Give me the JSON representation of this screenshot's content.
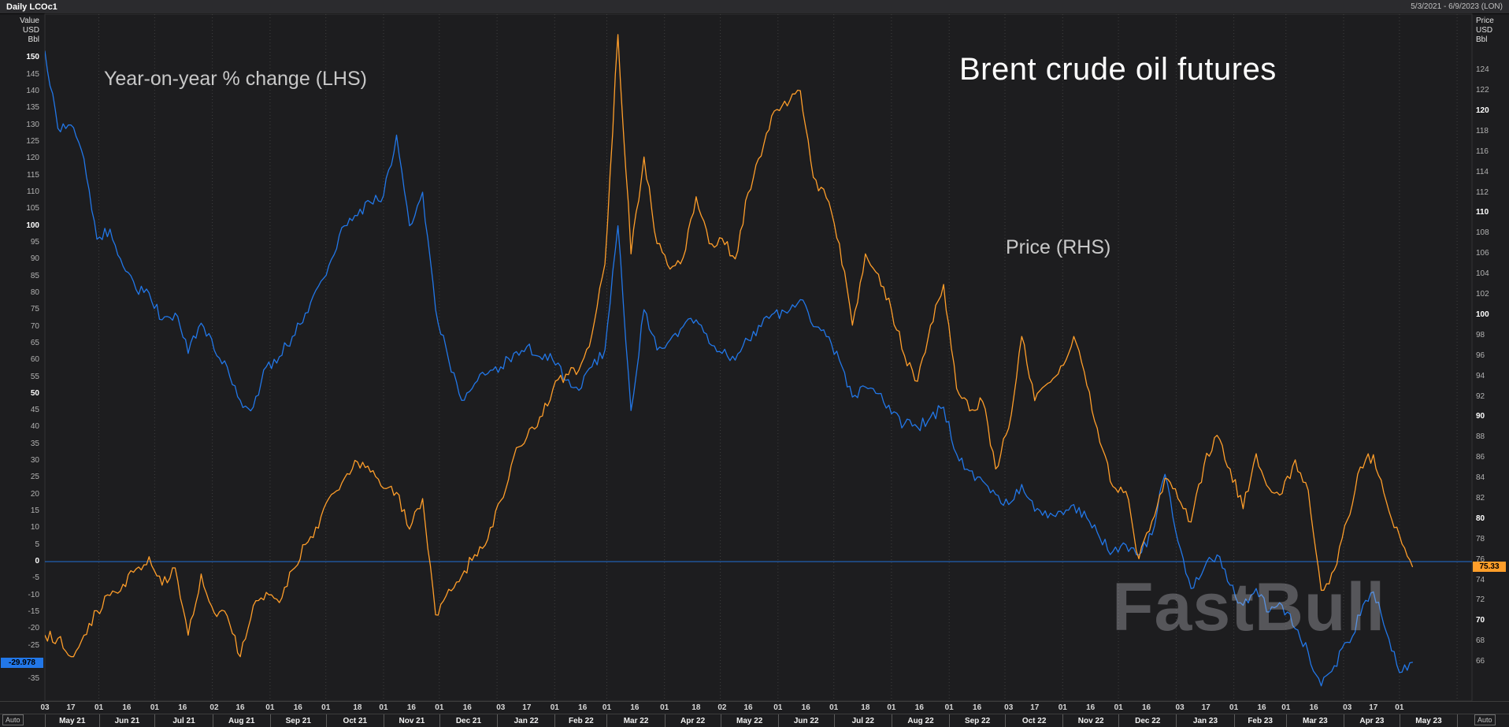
{
  "header": {
    "title": "Daily LCOc1",
    "date_range": "5/3/2021 - 6/9/2023 (LON)"
  },
  "watermark": "FastBull",
  "controls": {
    "auto_label": "Auto"
  },
  "colors": {
    "background": "#1d1d1f",
    "blue": "#2277e8",
    "orange": "#ff9e2a",
    "grid": "#3f3f3f",
    "plot_border": "#343434"
  },
  "chart_data": {
    "type": "line",
    "title": "Brent crude oil futures",
    "x_axis": {
      "start": "2021-05-03",
      "end": "2023-06-09",
      "months": [
        {
          "label": "May 21",
          "days": [
            3,
            17
          ]
        },
        {
          "label": "Jun 21",
          "days": [
            1,
            16
          ]
        },
        {
          "label": "Jul 21",
          "days": [
            1,
            16
          ]
        },
        {
          "label": "Aug 21",
          "days": [
            2,
            16
          ]
        },
        {
          "label": "Sep 21",
          "days": [
            1,
            16
          ]
        },
        {
          "label": "Oct 21",
          "days": [
            1,
            18
          ]
        },
        {
          "label": "Nov 21",
          "days": [
            1,
            16
          ]
        },
        {
          "label": "Dec 21",
          "days": [
            1,
            16
          ]
        },
        {
          "label": "Jan 22",
          "days": [
            3,
            17
          ]
        },
        {
          "label": "Feb 22",
          "days": [
            1,
            16
          ]
        },
        {
          "label": "Mar 22",
          "days": [
            1,
            16
          ]
        },
        {
          "label": "Apr 22",
          "days": [
            1,
            18
          ]
        },
        {
          "label": "May 22",
          "days": [
            2,
            16
          ]
        },
        {
          "label": "Jun 22",
          "days": [
            1,
            16
          ]
        },
        {
          "label": "Jul 22",
          "days": [
            1,
            18
          ]
        },
        {
          "label": "Aug 22",
          "days": [
            1,
            16
          ]
        },
        {
          "label": "Sep 22",
          "days": [
            1,
            16
          ]
        },
        {
          "label": "Oct 22",
          "days": [
            3,
            17
          ]
        },
        {
          "label": "Nov 22",
          "days": [
            1,
            16
          ]
        },
        {
          "label": "Dec 22",
          "days": [
            1,
            16
          ]
        },
        {
          "label": "Jan 23",
          "days": [
            3,
            17
          ]
        },
        {
          "label": "Feb 23",
          "days": [
            1,
            16
          ]
        },
        {
          "label": "Mar 23",
          "days": [
            1,
            16
          ]
        },
        {
          "label": "Apr 23",
          "days": [
            3,
            17
          ]
        },
        {
          "label": "May 23",
          "days": [
            1
          ]
        }
      ]
    },
    "left_axis": {
      "header": [
        "Value",
        "USD",
        "Bbl"
      ],
      "ticks": [
        150,
        145,
        140,
        135,
        130,
        125,
        120,
        115,
        110,
        105,
        100,
        95,
        90,
        85,
        80,
        75,
        70,
        65,
        60,
        55,
        50,
        45,
        40,
        35,
        30,
        25,
        20,
        15,
        10,
        5,
        0,
        -5,
        -10,
        -15,
        -20,
        -25,
        -30,
        -35
      ],
      "bold_interval": 50,
      "range": [
        -41.5,
        163
      ]
    },
    "right_axis": {
      "header": [
        "Price",
        "USD",
        "Bbl"
      ],
      "ticks": [
        124,
        122,
        120,
        118,
        116,
        114,
        112,
        110,
        108,
        106,
        104,
        102,
        100,
        98,
        96,
        94,
        92,
        90,
        88,
        86,
        84,
        82,
        80,
        78,
        76,
        74,
        72,
        70,
        68,
        66
      ],
      "bold_interval": 10,
      "range": [
        62.15,
        129.5
      ]
    },
    "zero_line": 0,
    "grid": "vertical-dotted-month-boundaries",
    "legend_position": "overlaid",
    "dates": [
      "2021-05-03",
      "2021-05-10",
      "2021-05-17",
      "2021-05-24",
      "2021-05-31",
      "2021-06-07",
      "2021-06-14",
      "2021-06-21",
      "2021-06-28",
      "2021-07-05",
      "2021-07-12",
      "2021-07-19",
      "2021-07-26",
      "2021-08-02",
      "2021-08-09",
      "2021-08-16",
      "2021-08-23",
      "2021-08-30",
      "2021-09-06",
      "2021-09-13",
      "2021-09-20",
      "2021-09-27",
      "2021-10-04",
      "2021-10-11",
      "2021-10-18",
      "2021-10-25",
      "2021-11-01",
      "2021-11-08",
      "2021-11-15",
      "2021-11-22",
      "2021-11-29",
      "2021-12-06",
      "2021-12-13",
      "2021-12-20",
      "2021-12-27",
      "2022-01-03",
      "2022-01-10",
      "2022-01-17",
      "2022-01-24",
      "2022-01-31",
      "2022-02-07",
      "2022-02-14",
      "2022-02-21",
      "2022-02-28",
      "2022-03-07",
      "2022-03-14",
      "2022-03-21",
      "2022-03-28",
      "2022-04-04",
      "2022-04-11",
      "2022-04-18",
      "2022-04-25",
      "2022-05-02",
      "2022-05-09",
      "2022-05-16",
      "2022-05-23",
      "2022-05-30",
      "2022-06-06",
      "2022-06-13",
      "2022-06-20",
      "2022-06-27",
      "2022-07-04",
      "2022-07-11",
      "2022-07-18",
      "2022-07-25",
      "2022-08-01",
      "2022-08-08",
      "2022-08-15",
      "2022-08-22",
      "2022-08-29",
      "2022-09-05",
      "2022-09-12",
      "2022-09-19",
      "2022-09-26",
      "2022-10-03",
      "2022-10-10",
      "2022-10-17",
      "2022-10-24",
      "2022-10-31",
      "2022-11-07",
      "2022-11-14",
      "2022-11-21",
      "2022-11-28",
      "2022-12-05",
      "2022-12-12",
      "2022-12-19",
      "2022-12-26",
      "2023-01-02",
      "2023-01-09",
      "2023-01-16",
      "2023-01-23",
      "2023-01-30",
      "2023-02-06",
      "2023-02-13",
      "2023-02-20",
      "2023-02-27",
      "2023-03-06",
      "2023-03-13",
      "2023-03-20",
      "2023-03-27",
      "2023-04-03",
      "2023-04-10",
      "2023-04-17",
      "2023-04-24",
      "2023-05-01",
      "2023-05-08"
    ],
    "series": [
      {
        "name": "Year-on-year % change (LHS)",
        "axis": "left",
        "color": "#2277e8",
        "last_value_label": "-29.978",
        "values": [
          152,
          129,
          130,
          120,
          96,
          99,
          88,
          81,
          80,
          72,
          74,
          62,
          71,
          63,
          58,
          48,
          46,
          58,
          61,
          67,
          74,
          82,
          90,
          100,
          103,
          107,
          109,
          127,
          100,
          110,
          75,
          60,
          48,
          53,
          56,
          58,
          62,
          64,
          61,
          60,
          54,
          51,
          58,
          63,
          100,
          45,
          75,
          63,
          66,
          70,
          72,
          65,
          62,
          60,
          66,
          70,
          74,
          74,
          78,
          70,
          67,
          60,
          49,
          52,
          50,
          44,
          41,
          40,
          43,
          46,
          32,
          27,
          24,
          20,
          17,
          23,
          15,
          13,
          15,
          17,
          13,
          7,
          3,
          5,
          2,
          8,
          26,
          6,
          -8,
          -2,
          2,
          -7,
          -13,
          -8,
          -15,
          -13,
          -20,
          -27,
          -37,
          -31,
          -24,
          -16,
          -9,
          -21,
          -33,
          -29.978
        ]
      },
      {
        "name": "Price (RHS)",
        "axis": "right",
        "color": "#ff9e2a",
        "last_value_label": "75.33",
        "values": [
          68.6,
          68.3,
          66.5,
          68.6,
          71.0,
          72.5,
          73.6,
          75.1,
          76.3,
          73.5,
          75.2,
          68.6,
          74.6,
          70.8,
          70.5,
          66.5,
          71.5,
          72.8,
          71.8,
          75.0,
          77.5,
          79.1,
          82.4,
          84.0,
          85.6,
          84.6,
          83.0,
          82.6,
          79.0,
          82.0,
          70.6,
          73.1,
          74.4,
          76.5,
          78.0,
          81.8,
          86.1,
          88.0,
          90.0,
          92.7,
          94.2,
          94.6,
          98.1,
          105.0,
          127.5,
          106.0,
          115.5,
          107.0,
          104.5,
          105.6,
          111.6,
          107.0,
          107.5,
          105.5,
          112.0,
          115.6,
          120.0,
          120.5,
          122.0,
          113.5,
          111.5,
          107.0,
          99.0,
          106.0,
          104.0,
          100.5,
          96.0,
          93.5,
          99.0,
          103.0,
          92.8,
          90.6,
          91.5,
          84.9,
          88.9,
          97.9,
          91.6,
          93.3,
          95.0,
          97.9,
          93.1,
          87.5,
          83.2,
          82.7,
          76.1,
          79.8,
          84.0,
          82.0,
          79.7,
          85.3,
          88.2,
          84.9,
          81.0,
          86.4,
          83.0,
          82.5,
          85.8,
          82.8,
          73.0,
          75.0,
          79.9,
          85.1,
          86.3,
          81.7,
          78.4,
          75.33
        ]
      }
    ]
  }
}
